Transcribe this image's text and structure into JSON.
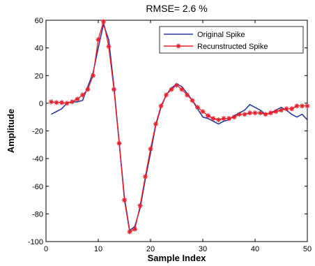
{
  "chart_data": {
    "type": "line",
    "title": "RMSE= 2.6 %",
    "xlabel": "Sample Index",
    "ylabel": "Amplitude",
    "xlim": [
      0,
      50
    ],
    "ylim": [
      -100,
      60
    ],
    "xticks": [
      0,
      10,
      20,
      30,
      40,
      50
    ],
    "yticks": [
      -100,
      -80,
      -60,
      -40,
      -20,
      0,
      20,
      40,
      60
    ],
    "grid": false,
    "legend_position": "top-right",
    "series": [
      {
        "name": "Original Spike",
        "color": "#2b3a9e",
        "marker": "none",
        "x": [
          1,
          2,
          3,
          4,
          5,
          6,
          7,
          8,
          9,
          10,
          11,
          12,
          13,
          14,
          15,
          16,
          17,
          18,
          19,
          20,
          21,
          22,
          23,
          24,
          25,
          26,
          27,
          28,
          29,
          30,
          31,
          32,
          33,
          34,
          35,
          36,
          37,
          38,
          39,
          40,
          41,
          42,
          43,
          44,
          45,
          46,
          47,
          48,
          49,
          50
        ],
        "y": [
          -8,
          -6,
          -4,
          0,
          1,
          1,
          2,
          12,
          22,
          40,
          57,
          46,
          12,
          -28,
          -68,
          -92,
          -89,
          -76,
          -55,
          -36,
          -16,
          -3,
          6,
          11,
          14,
          12,
          7,
          2,
          -4,
          -10,
          -11,
          -13,
          -15,
          -13,
          -12,
          -9,
          -7,
          -5,
          -1,
          -3,
          -5,
          -8,
          -7,
          -5,
          -3,
          -5,
          -8,
          -10,
          -8,
          -12
        ]
      },
      {
        "name": "Recunstructed Spike",
        "color": "#e8212c",
        "marker": "star",
        "x": [
          1,
          2,
          3,
          4,
          5,
          6,
          7,
          8,
          9,
          10,
          11,
          12,
          13,
          14,
          15,
          16,
          17,
          18,
          19,
          20,
          21,
          22,
          23,
          24,
          25,
          26,
          27,
          28,
          29,
          30,
          31,
          32,
          33,
          34,
          35,
          36,
          37,
          38,
          39,
          40,
          41,
          42,
          43,
          44,
          45,
          46,
          47,
          48,
          49,
          50
        ],
        "y": [
          1,
          0.5,
          0.5,
          0,
          1,
          3,
          6,
          10,
          20,
          46,
          59,
          41,
          10,
          -29,
          -70,
          -93,
          -91,
          -74,
          -53,
          -33,
          -15,
          -2,
          6,
          10,
          13,
          10,
          6,
          2,
          -3,
          -6,
          -9,
          -11,
          -12,
          -11,
          -11,
          -10,
          -8,
          -8,
          -7,
          -7,
          -7,
          -8,
          -7,
          -6,
          -5,
          -4,
          -4,
          -2,
          -2,
          -2
        ]
      }
    ]
  }
}
